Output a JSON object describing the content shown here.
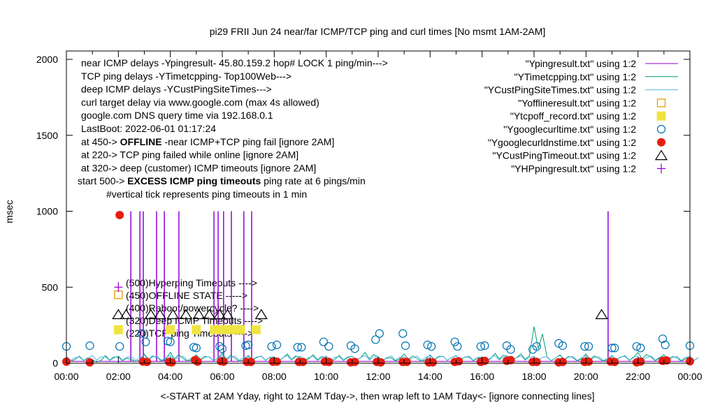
{
  "chart_data": {
    "type": "line",
    "title": "pi29 FRII Jun 24  near/far ICMP/TCP ping and curl times [No msmt 1AM-2AM]",
    "xlabel": "<-START at 2AM Yday, right to 12AM Tday->, then wrap left to 1AM Tday<- [ignore connecting lines]",
    "ylabel": "msec",
    "xlim": [
      0,
      24
    ],
    "ylim": [
      0,
      2000
    ],
    "x_tick_labels": [
      "00:00",
      "02:00",
      "04:00",
      "06:00",
      "08:00",
      "10:00",
      "12:00",
      "14:00",
      "16:00",
      "18:00",
      "20:00",
      "22:00",
      "00:00"
    ],
    "y_ticks": [
      0,
      500,
      1000,
      1500,
      2000
    ],
    "legend_position": "top-right",
    "notes": [
      {
        "text": "near ICMP delays -Ypingresult- 45.80.159.2 hop# LOCK 1 ping/min--->"
      },
      {
        "text": "TCP ping delays -YTimetcpping- Top100Web--->"
      },
      {
        "text": "deep ICMP delays -YCustPingSiteTimes--->"
      },
      {
        "text": "curl target delay via www.google.com (max 4s allowed)"
      },
      {
        "text": "google.com DNS query time via 192.168.0.1"
      },
      {
        "text": "LastBoot: 2022-06-01 01:17:24"
      },
      {
        "pre": "at 450-> ",
        "bold": "OFFLINE",
        "post": " -near ICMP+TCP ping fail [ignore 2AM]"
      },
      {
        "text": "at 220-> TCP ping failed while online [ignore 2AM]"
      },
      {
        "text": "at 320-> deep (customer) ICMP timeouts [ignore 2AM]"
      },
      {
        "pre": "start 500-> ",
        "bold": "EXCESS ICMP ping timeouts",
        "post": "  ping rate at 6 pings/min"
      },
      {
        "text": "#vertical tick represents ping timeouts in 1 min"
      }
    ],
    "level_labels": [
      {
        "value": 500,
        "text": "(500)Hyperping Timeouts ---->"
      },
      {
        "value": 450,
        "text": "(450)OFFLINE STATE ----->"
      },
      {
        "value": 400,
        "text": "(400)Reboot/powercycle? ---->"
      },
      {
        "value": 320,
        "text": "(320)Deep ICMP Timeouts ---->"
      },
      {
        "value": 220,
        "text": "(220)TCP ping Timeouts ---->"
      }
    ],
    "series": [
      {
        "name": "\"Ypingresult.txt\" using 1:2",
        "style": "line",
        "color": "#9400d3",
        "baseline": 12,
        "spikes": [
          [
            2.48,
            1000
          ],
          [
            2.83,
            1000
          ],
          [
            2.96,
            1000
          ],
          [
            3.47,
            1000
          ],
          [
            3.77,
            1000
          ],
          [
            4.33,
            1000
          ],
          [
            5.68,
            1000
          ],
          [
            5.84,
            1000
          ],
          [
            6.05,
            1000
          ],
          [
            6.35,
            1000
          ],
          [
            6.83,
            1000
          ],
          [
            7.13,
            1000
          ],
          [
            20.85,
            1000
          ]
        ]
      },
      {
        "name": "\"YTimetcpping.txt\" using 1:2",
        "style": "line",
        "color": "#009e73",
        "x_step": 0.5,
        "values": [
          30,
          45,
          20,
          50,
          40,
          25,
          60,
          35,
          70,
          30,
          55,
          40,
          65,
          30,
          50,
          45,
          40,
          60,
          35,
          55,
          30,
          50,
          45,
          70,
          40,
          35,
          60,
          30,
          55,
          45,
          50,
          40,
          35,
          65,
          45,
          60,
          240,
          40,
          55,
          35,
          60,
          30,
          50,
          45,
          70,
          40,
          55,
          35,
          45
        ]
      },
      {
        "name": "\"YCustPingSiteTimes.txt\" using 1:2",
        "style": "line",
        "color": "#56b4e9",
        "x_step": 0.5,
        "values": [
          45,
          40,
          50,
          42,
          48,
          44,
          52,
          46,
          50,
          44,
          48,
          42,
          50,
          46,
          44,
          48,
          42,
          50,
          46,
          44,
          48,
          42,
          46,
          50,
          44,
          48,
          42,
          46,
          50,
          44,
          48,
          46,
          42,
          50,
          44,
          48,
          46,
          42,
          50,
          44,
          48,
          42,
          46,
          50,
          44,
          48,
          42,
          46,
          44
        ]
      },
      {
        "name": "\"Yofflineresult.txt\" using 1:2",
        "style": "open-square",
        "color": "#e69f00",
        "points": [
          [
            2.0,
            450
          ]
        ]
      },
      {
        "name": "\"Ytcpoff_record.txt\" using 1:2",
        "style": "filled-square",
        "color": "#f0e442",
        "points": [
          [
            2.0,
            220
          ],
          [
            4.0,
            220
          ],
          [
            5.0,
            220
          ],
          [
            5.7,
            220
          ],
          [
            5.95,
            220
          ],
          [
            6.2,
            220
          ],
          [
            6.45,
            220
          ],
          [
            6.7,
            220
          ],
          [
            7.3,
            220
          ]
        ]
      },
      {
        "name": "\"Ygooglecurltime.txt\" using 1:2",
        "style": "open-circle",
        "color": "#0072b2",
        "points": [
          [
            0.0,
            110
          ],
          [
            0.9,
            115
          ],
          [
            2.05,
            110
          ],
          [
            2.9,
            195
          ],
          [
            3.05,
            140
          ],
          [
            3.9,
            145
          ],
          [
            4.0,
            140
          ],
          [
            4.9,
            105
          ],
          [
            5.0,
            100
          ],
          [
            5.9,
            110
          ],
          [
            6.0,
            95
          ],
          [
            6.9,
            115
          ],
          [
            7.0,
            120
          ],
          [
            7.9,
            110
          ],
          [
            8.1,
            120
          ],
          [
            8.9,
            105
          ],
          [
            9.05,
            105
          ],
          [
            9.9,
            140
          ],
          [
            10.1,
            110
          ],
          [
            10.95,
            115
          ],
          [
            11.1,
            95
          ],
          [
            11.9,
            155
          ],
          [
            12.05,
            195
          ],
          [
            12.95,
            195
          ],
          [
            13.05,
            115
          ],
          [
            13.9,
            120
          ],
          [
            14.05,
            110
          ],
          [
            14.95,
            140
          ],
          [
            15.05,
            110
          ],
          [
            15.95,
            110
          ],
          [
            16.1,
            115
          ],
          [
            16.95,
            115
          ],
          [
            17.1,
            90
          ],
          [
            17.95,
            90
          ],
          [
            18.1,
            110
          ],
          [
            18.95,
            130
          ],
          [
            19.1,
            115
          ],
          [
            19.95,
            110
          ],
          [
            20.1,
            110
          ],
          [
            21.0,
            100
          ],
          [
            21.1,
            100
          ],
          [
            21.95,
            110
          ],
          [
            22.1,
            100
          ],
          [
            22.95,
            160
          ],
          [
            23.05,
            120
          ],
          [
            24.0,
            115
          ]
        ]
      },
      {
        "name": "\"Ygooglecurldnstime.txt\" using 1:2",
        "style": "filled-circle",
        "color": "#e51e10",
        "points": [
          [
            0.0,
            10
          ],
          [
            0.9,
            5
          ],
          [
            2.05,
            975
          ],
          [
            2.95,
            10
          ],
          [
            3.1,
            8
          ],
          [
            3.95,
            8
          ],
          [
            4.05,
            5
          ],
          [
            4.95,
            20
          ],
          [
            5.05,
            10
          ],
          [
            5.95,
            12
          ],
          [
            6.05,
            10
          ],
          [
            6.95,
            8
          ],
          [
            7.1,
            8
          ],
          [
            7.95,
            10
          ],
          [
            8.1,
            10
          ],
          [
            8.95,
            8
          ],
          [
            9.1,
            8
          ],
          [
            9.95,
            10
          ],
          [
            10.1,
            8
          ],
          [
            10.95,
            5
          ],
          [
            11.1,
            8
          ],
          [
            11.95,
            8
          ],
          [
            12.1,
            5
          ],
          [
            12.95,
            8
          ],
          [
            13.1,
            8
          ],
          [
            13.95,
            5
          ],
          [
            14.1,
            5
          ],
          [
            14.95,
            8
          ],
          [
            15.1,
            12
          ],
          [
            15.95,
            8
          ],
          [
            16.1,
            15
          ],
          [
            16.95,
            15
          ],
          [
            17.1,
            20
          ],
          [
            17.95,
            8
          ],
          [
            18.1,
            8
          ],
          [
            18.95,
            5
          ],
          [
            19.1,
            8
          ],
          [
            19.95,
            8
          ],
          [
            20.1,
            10
          ],
          [
            20.95,
            10
          ],
          [
            21.1,
            8
          ],
          [
            21.95,
            5
          ],
          [
            22.1,
            10
          ],
          [
            22.95,
            15
          ],
          [
            23.1,
            18
          ],
          [
            24.0,
            12
          ]
        ]
      },
      {
        "name": "\"YCustPingTimeout.txt\" using 1:2",
        "style": "open-triangle",
        "color": "#000000",
        "points": [
          [
            2.0,
            320
          ],
          [
            2.3,
            320
          ],
          [
            3.25,
            320
          ],
          [
            3.6,
            320
          ],
          [
            4.1,
            320
          ],
          [
            4.6,
            320
          ],
          [
            5.1,
            320
          ],
          [
            5.5,
            320
          ],
          [
            5.9,
            320
          ],
          [
            6.2,
            320
          ],
          [
            7.5,
            320
          ],
          [
            20.6,
            320
          ]
        ]
      },
      {
        "name": "\"YHPpingresult.txt\" using 1:2",
        "style": "plus",
        "color": "#9400d3",
        "points": [
          [
            2.0,
            500
          ]
        ]
      }
    ]
  }
}
